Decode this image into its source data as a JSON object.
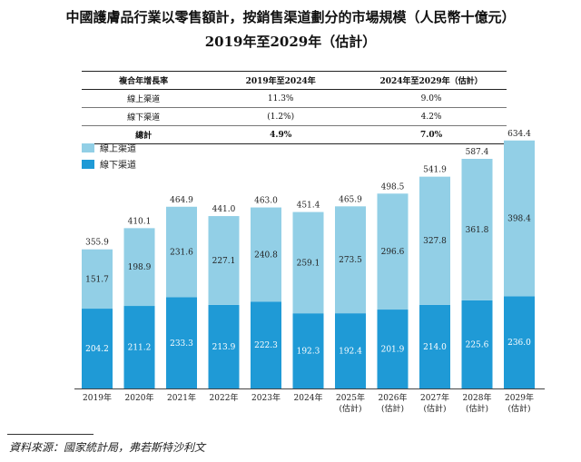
{
  "title_line1": "中國護膚品行業以零售額計，按銷售渠道劃分的市場規模（人民幣十億元）",
  "title_line2": "2019年至2029年（估計）",
  "growth_table": {
    "header": [
      "複合年增長率",
      "2019年至2024年",
      "2024年至2029年（估計）"
    ],
    "rows": [
      [
        "線上渠道",
        "11.3%",
        "9.0%"
      ],
      [
        "線下渠道",
        "(1.2%)",
        "4.2%"
      ],
      [
        "總計",
        "4.9%",
        "7.0%"
      ]
    ]
  },
  "chart_data": {
    "type": "bar",
    "stacked": true,
    "categories": [
      "2019年",
      "2020年",
      "2021年",
      "2022年",
      "2023年",
      "2024年",
      "2025年\n(估計)",
      "2026年\n(估計)",
      "2027年\n(估計)",
      "2028年\n(估計)",
      "2029年\n(估計)"
    ],
    "series": [
      {
        "name": "線下渠道",
        "color": "#1f9ad6",
        "values": [
          204.2,
          211.2,
          233.3,
          213.9,
          222.3,
          192.3,
          192.4,
          201.9,
          214.0,
          225.6,
          236.0
        ]
      },
      {
        "name": "線上渠道",
        "color": "#92cfe6",
        "values": [
          151.7,
          198.9,
          231.6,
          227.1,
          240.8,
          259.1,
          273.5,
          296.6,
          327.8,
          361.8,
          398.4
        ]
      }
    ],
    "totals": [
      355.9,
      410.1,
      464.9,
      441.0,
      463.0,
      451.4,
      465.9,
      498.5,
      541.9,
      587.4,
      634.4
    ],
    "legend": [
      "線上渠道",
      "線下渠道"
    ],
    "legend_colors": [
      "#92cfe6",
      "#1f9ad6"
    ],
    "title": "中國護膚品行業以零售額計，按銷售渠道劃分的市場規模（人民幣十億元）",
    "xlabel": "",
    "ylabel": "",
    "ylim": [
      0,
      640
    ]
  },
  "source": "資料來源：國家統計局，弗若斯特沙利文"
}
